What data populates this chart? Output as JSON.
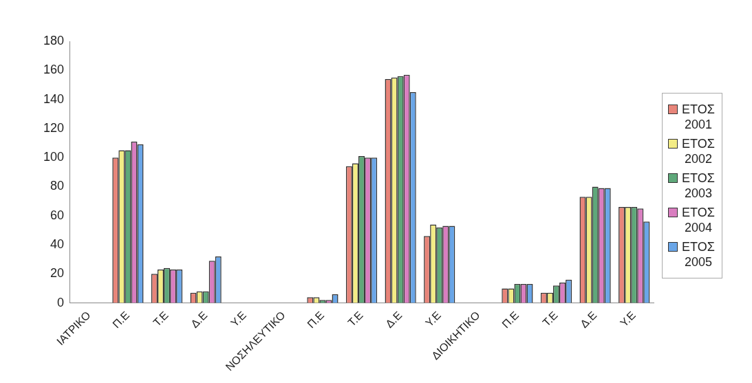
{
  "chart_data": {
    "type": "bar",
    "categories": [
      "ΙΑΤΡΙΚΟ",
      "Π.Ε",
      "Τ.Ε",
      "Δ.Ε",
      "Υ.Ε",
      "ΝΟΣΗΛΕΥΤΙΚΟ",
      "Π.Ε",
      "Τ.Ε",
      "Δ.Ε",
      "Υ.Ε",
      "ΔΙΟΙΚΗΤΙΚΟ",
      "Π.Ε",
      "Τ.Ε",
      "Δ.Ε",
      "Υ.Ε"
    ],
    "series": [
      {
        "name": "ΕΤΟΣ 2001",
        "color": "#e8857a",
        "values": [
          null,
          100,
          20,
          7,
          null,
          null,
          4,
          94,
          154,
          46,
          null,
          10,
          7,
          73,
          66
        ]
      },
      {
        "name": "ΕΤΟΣ 2002",
        "color": "#f3ec86",
        "values": [
          null,
          105,
          23,
          8,
          null,
          null,
          4,
          96,
          155,
          54,
          null,
          10,
          7,
          73,
          66
        ]
      },
      {
        "name": "ΕΤΟΣ 2003",
        "color": "#5fa87a",
        "values": [
          null,
          105,
          24,
          8,
          null,
          null,
          2,
          101,
          156,
          52,
          null,
          13,
          12,
          80,
          66
        ]
      },
      {
        "name": "ΕΤΟΣ 2004",
        "color": "#d97ec0",
        "values": [
          null,
          111,
          23,
          29,
          null,
          null,
          2,
          100,
          157,
          53,
          null,
          13,
          14,
          79,
          65
        ]
      },
      {
        "name": "ΕΤΟΣ 2005",
        "color": "#6aa6e8",
        "values": [
          null,
          109,
          23,
          32,
          null,
          null,
          6,
          100,
          145,
          53,
          null,
          13,
          16,
          79,
          56
        ]
      }
    ],
    "ylim": [
      0,
      180
    ],
    "yticks": [
      0,
      20,
      40,
      60,
      80,
      100,
      120,
      140,
      160,
      180
    ],
    "grid": false,
    "legend": "right"
  }
}
